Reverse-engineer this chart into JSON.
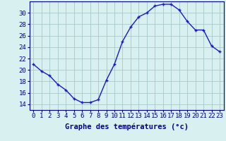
{
  "hours": [
    0,
    1,
    2,
    3,
    4,
    5,
    6,
    7,
    8,
    9,
    10,
    11,
    12,
    13,
    14,
    15,
    16,
    17,
    18,
    19,
    20,
    21,
    22,
    23
  ],
  "temps": [
    21.0,
    19.8,
    19.0,
    17.5,
    16.5,
    15.0,
    14.3,
    14.3,
    14.8,
    18.2,
    21.0,
    25.0,
    27.5,
    29.3,
    30.0,
    31.2,
    31.5,
    31.5,
    30.5,
    28.5,
    27.0,
    27.0,
    24.2,
    23.2
  ],
  "line_color": "#1a1acc",
  "marker": "+",
  "marker_size": 3,
  "marker_linewidth": 1.0,
  "bg_color": "#d8f0f0",
  "grid_color": "#a8c8c8",
  "xlabel": "Graphe des températures (°c)",
  "ylim": [
    13.0,
    32.0
  ],
  "yticks": [
    14,
    16,
    18,
    20,
    22,
    24,
    26,
    28,
    30
  ],
  "xlim": [
    -0.5,
    23.5
  ],
  "xticks": [
    0,
    1,
    2,
    3,
    4,
    5,
    6,
    7,
    8,
    9,
    10,
    11,
    12,
    13,
    14,
    15,
    16,
    17,
    18,
    19,
    20,
    21,
    22,
    23
  ],
  "xlabel_fontsize": 7.5,
  "tick_fontsize": 6.5,
  "label_color": "#00008b",
  "spine_color": "#00008b",
  "linewidth": 1.0
}
